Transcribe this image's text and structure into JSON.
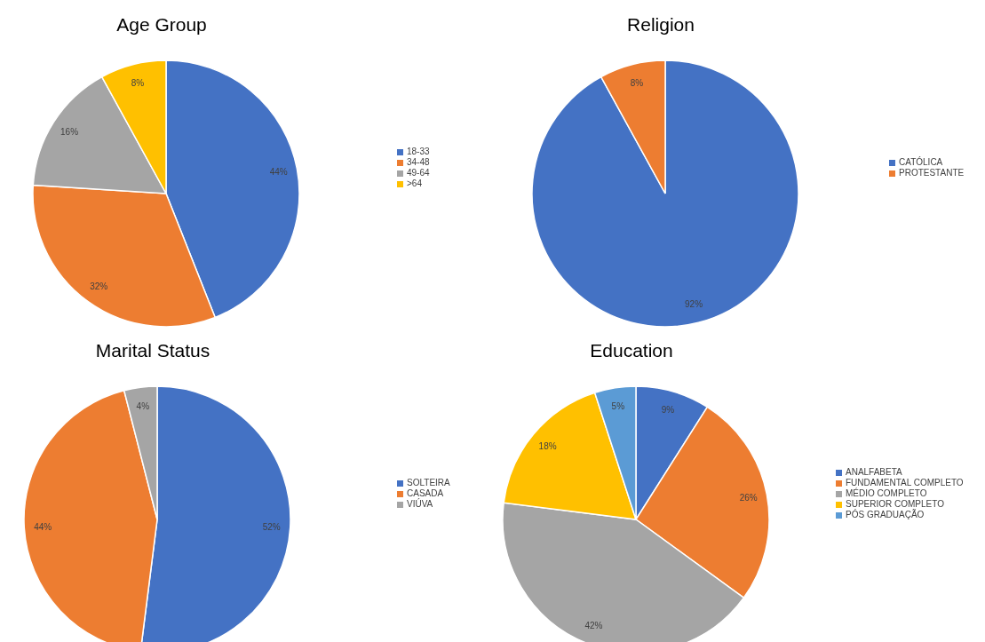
{
  "chart_data": [
    {
      "type": "pie",
      "title": "Age Group",
      "categories": [
        "18-33",
        "34-48",
        "49-64",
        ">64"
      ],
      "values": [
        44,
        32,
        16,
        8
      ],
      "value_labels": [
        "44%",
        "32%",
        "16%",
        "8%"
      ],
      "colors": [
        "#4472c4",
        "#ed7d31",
        "#a5a5a5",
        "#ffc000"
      ],
      "legend": "right"
    },
    {
      "type": "pie",
      "title": "Religion",
      "categories": [
        "CATÓLICA",
        "PROTESTANTE"
      ],
      "values": [
        92,
        8
      ],
      "value_labels": [
        "92%",
        "8%"
      ],
      "colors": [
        "#4472c4",
        "#ed7d31"
      ],
      "legend": "right"
    },
    {
      "type": "pie",
      "title": "Marital Status",
      "categories": [
        "SOLTEIRA",
        "CASADA",
        "VIÚVA"
      ],
      "values": [
        52,
        44,
        4
      ],
      "value_labels": [
        "52%",
        "44%",
        "4%"
      ],
      "colors": [
        "#4472c4",
        "#ed7d31",
        "#a5a5a5"
      ],
      "legend": "right"
    },
    {
      "type": "pie",
      "title": "Education",
      "categories": [
        "ANALFABETA",
        "FUNDAMENTAL COMPLETO",
        "MÉDIO COMPLETO",
        "SUPERIOR COMPLETO",
        "PÓS GRADUAÇÃO"
      ],
      "values": [
        9,
        26,
        42,
        18,
        5
      ],
      "value_labels": [
        "9%",
        "26%",
        "42%",
        "18%",
        "5%"
      ],
      "colors": [
        "#4472c4",
        "#ed7d31",
        "#a5a5a5",
        "#ffc000",
        "#5b9bd5"
      ],
      "legend": "right"
    }
  ]
}
